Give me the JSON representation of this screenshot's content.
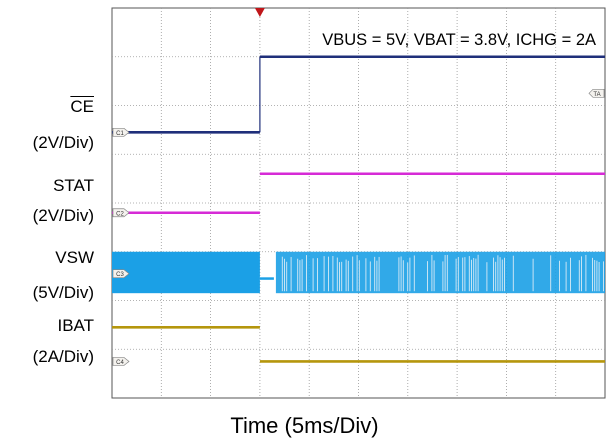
{
  "chart_data": {
    "type": "line",
    "title": "VBUS = 5V, VBAT = 3.8V, ICHG = 2A",
    "xlabel": "Time (5ms/Div)",
    "x_divisions": 10,
    "y_divisions": 8,
    "grid": true,
    "event_time_div": 3.0,
    "series": [
      {
        "name": "CE",
        "scale": "(2V/Div)",
        "marker": "C1",
        "color": "#1f2f7a",
        "style": "step",
        "before_div": 5.45,
        "after_div": 7.0
      },
      {
        "name": "STAT",
        "scale": "(2V/Div)",
        "marker": "C2",
        "color": "#d62ad6",
        "style": "step",
        "before_div": 3.8,
        "after_div": 4.6
      },
      {
        "name": "VSW",
        "scale": "(5V/Div)",
        "marker": "C3",
        "color": "#1ba0e6",
        "style": "switching",
        "before_low_div": 2.15,
        "before_high_div": 3.0,
        "after_low_div": 2.15,
        "after_high_div": 3.0
      },
      {
        "name": "IBAT",
        "scale": "(2A/Div)",
        "marker": "C4",
        "color": "#b5960c",
        "style": "step",
        "before_div": 1.45,
        "after_div": 0.75
      }
    ],
    "trigger_marker": "TA"
  }
}
